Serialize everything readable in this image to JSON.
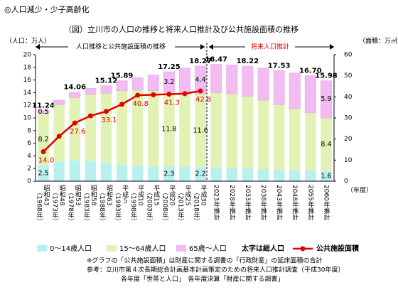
{
  "header": "◎人口減少・少子高齢化",
  "chart_data": {
    "type": "bar",
    "title": "（図）立川市の人口の推移と将来人口推計及び公共施設面積の推移",
    "y_axis_label": "（人口：万人）",
    "y2_axis_label": "（面積：万㎡）",
    "x_axis_label": "（年度）",
    "period_labels": [
      "人口推移と公共施設面積の推移",
      "将来人口推計"
    ],
    "categories": [
      "昭和43",
      "昭和48",
      "昭和53",
      "昭和58",
      "昭和63",
      "平成５",
      "平成10",
      "平成15",
      "平成20",
      "平成25",
      "平成30",
      "2023年推計",
      "2028年推計",
      "2033年推計",
      "2038年推計",
      "2043年推計",
      "2048年推計",
      "2055年推計",
      "2060年推計"
    ],
    "category_years": [
      "（1968年）",
      "（1973年）",
      "（1978年）",
      "（1983年）",
      "（1988年）",
      "（1993年）",
      "（1998年）",
      "（2003年）",
      "（2008年）",
      "（2013年）",
      "（2018年）",
      null,
      null,
      null,
      null,
      null,
      null,
      null,
      null
    ],
    "ylim": [
      0,
      20
    ],
    "yticks": [
      0,
      2,
      4,
      6,
      8,
      10,
      12,
      14,
      16,
      18,
      20
    ],
    "y2lim": [
      0,
      60
    ],
    "y2ticks": [
      0,
      10,
      20,
      30,
      40,
      50,
      60
    ],
    "grid": false,
    "series": [
      {
        "name": "0～14歳人口",
        "color": "#b8f0f0",
        "values": [
          2.5,
          3.0,
          3.3,
          3.2,
          2.9,
          2.6,
          2.4,
          2.3,
          2.3,
          2.3,
          2.2,
          2.2,
          2.1,
          2.0,
          1.9,
          1.8,
          1.7,
          1.7,
          1.6
        ],
        "value_labels": [
          "2.5",
          null,
          null,
          null,
          null,
          null,
          null,
          null,
          "2.3",
          null,
          "2.2",
          null,
          null,
          null,
          null,
          null,
          null,
          null,
          "1.6"
        ]
      },
      {
        "name": "15～64歳人口",
        "color": "#e2f2b4",
        "values": [
          8.2,
          9.1,
          9.9,
          10.5,
          11.0,
          11.7,
          12.0,
          12.0,
          11.8,
          11.8,
          11.6,
          11.8,
          11.7,
          11.4,
          10.9,
          10.3,
          9.8,
          9.1,
          8.4
        ],
        "value_labels": [
          "8.2",
          null,
          null,
          null,
          null,
          null,
          null,
          null,
          "11.8",
          null,
          "11.6",
          null,
          null,
          null,
          null,
          null,
          null,
          null,
          "8.4"
        ]
      },
      {
        "name": "65歳～人口",
        "color": "#f2bcf2",
        "values": [
          0.5,
          0.7,
          0.9,
          1.0,
          1.2,
          1.6,
          2.0,
          2.5,
          3.2,
          3.8,
          4.4,
          4.5,
          4.6,
          4.8,
          5.1,
          5.4,
          5.6,
          5.9,
          5.9
        ],
        "value_labels": [
          "0.5",
          null,
          null,
          null,
          null,
          null,
          null,
          null,
          "3.2",
          null,
          "4.4",
          null,
          null,
          null,
          null,
          null,
          null,
          null,
          "5.9"
        ]
      },
      {
        "name": "公共施設面積",
        "type": "line",
        "axis": "y2",
        "color": "#e00000",
        "values": [
          14.0,
          21.3,
          27.6,
          31.0,
          33.1,
          36.5,
          40.8,
          41.0,
          41.3,
          41.5,
          42.8,
          null,
          null,
          null,
          null,
          null,
          null,
          null,
          null
        ],
        "value_labels": [
          "14.0",
          null,
          "27.6",
          null,
          "33.1",
          null,
          "40.8",
          null,
          "41.3",
          null,
          "42.8",
          null,
          null,
          null,
          null,
          null,
          null,
          null,
          null
        ]
      }
    ],
    "total_labels": [
      "11.24",
      null,
      "14.06",
      null,
      "15.12",
      "15.89",
      null,
      null,
      "17.25",
      null,
      "18.27",
      "18.47",
      null,
      "18.22",
      null,
      "17.53",
      null,
      "16.70",
      "15.98"
    ],
    "legend_note": "太字は総人口",
    "notes": [
      "※グラフの「公共施設面積」は財産に関する調書の「行政財産」の延床面積の合計",
      "参考：立川市第４次長期総合計画基本計画策定のための将来人口推計調査（平成30年度）",
      "各年度「世帯と人口」　各年度決算「財産に関する調書」"
    ]
  }
}
